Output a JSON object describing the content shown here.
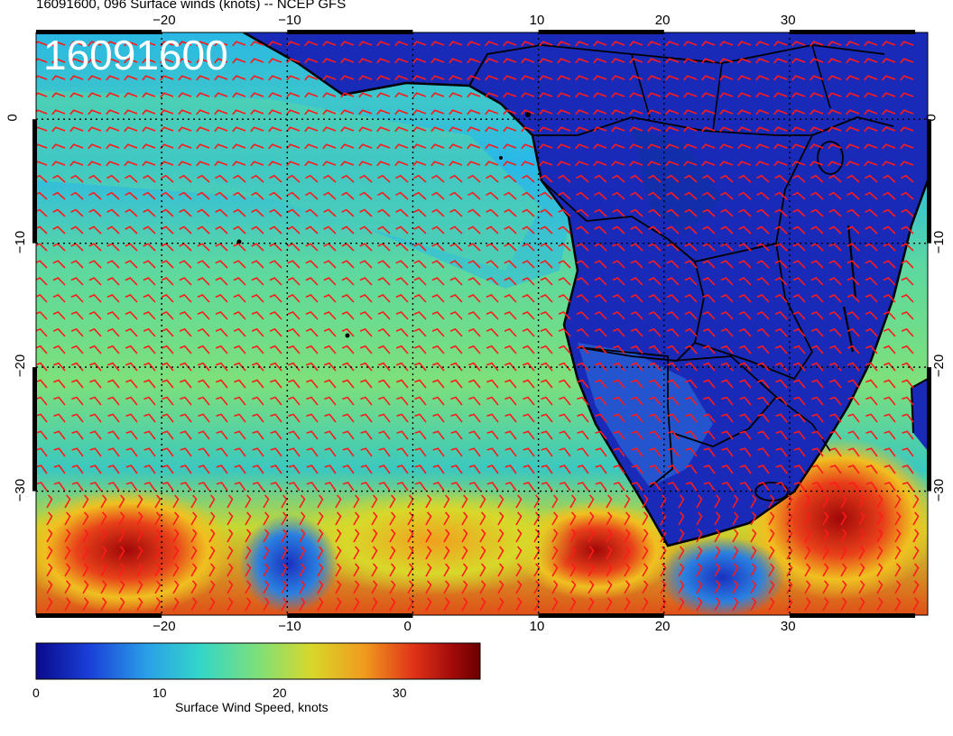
{
  "title": "16091600, 096 Surface winds (knots) -- NCEP GFS",
  "stamp": "16091600",
  "axes": {
    "lon_ticks": [
      {
        "value": -20,
        "label": "−20"
      },
      {
        "value": -10,
        "label": "−10"
      },
      {
        "value": 0,
        "label": "0"
      },
      {
        "value": 10,
        "label": "10"
      },
      {
        "value": 20,
        "label": "20"
      },
      {
        "value": 30,
        "label": "30"
      }
    ],
    "lat_ticks": [
      {
        "value": 0,
        "label": "0"
      },
      {
        "value": -10,
        "label": "−10"
      },
      {
        "value": -20,
        "label": "−20"
      },
      {
        "value": -30,
        "label": "−30"
      }
    ],
    "lon_range": [
      -30,
      41
    ],
    "lat_range": [
      -40,
      7
    ]
  },
  "colorbar": {
    "label": "Surface Wind Speed, knots",
    "ticks": [
      {
        "value": 0,
        "label": "0"
      },
      {
        "value": 10,
        "label": "10"
      },
      {
        "value": 20,
        "label": "20"
      },
      {
        "value": 30,
        "label": "30"
      }
    ],
    "range": [
      0,
      37
    ],
    "colors": [
      "#0a0a8c",
      "#1a3fd8",
      "#2aa0e8",
      "#33d6c8",
      "#7ee07a",
      "#d8d82a",
      "#f09a1e",
      "#e03218",
      "#a00a0a",
      "#6a0000"
    ]
  },
  "colors": {
    "barb": "#ff1a1a",
    "land_low": "#1a2ab8",
    "ocean_mid": "#4fd0b0"
  }
}
